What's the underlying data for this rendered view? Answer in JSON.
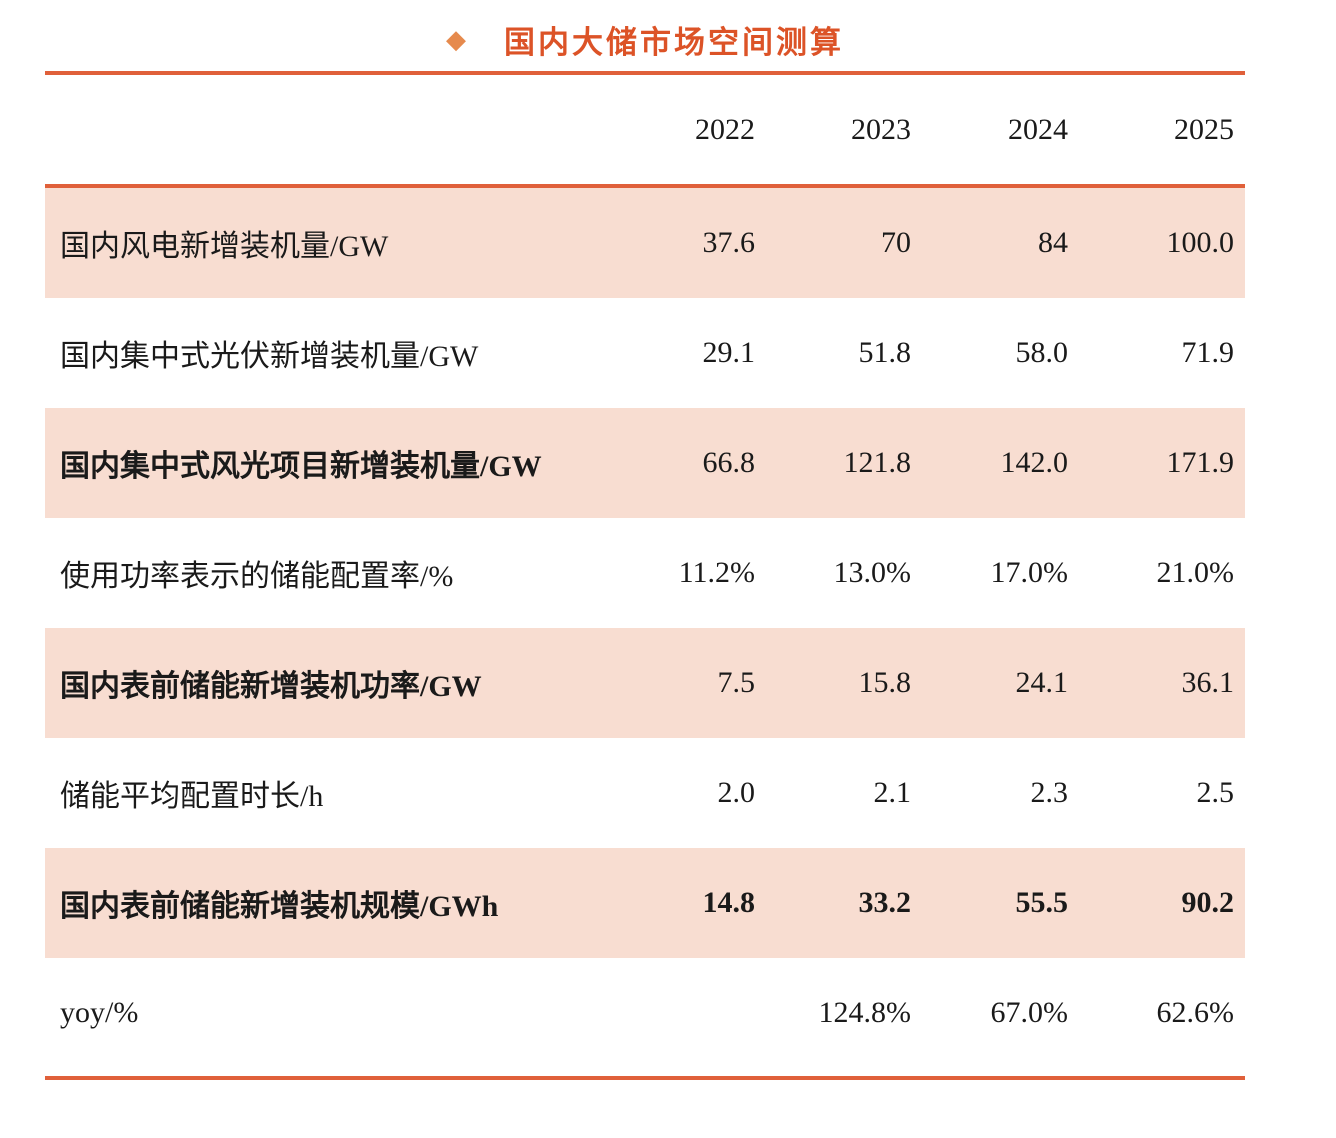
{
  "title": {
    "bullet_glyph": "◆",
    "text": "国内大储市场空间测算"
  },
  "colors": {
    "title_text": "#dc5327",
    "bullet": "#e68a4d",
    "accent_line": "#e0603a",
    "row_shade": "#f8ddd1"
  },
  "chart_data": {
    "type": "table",
    "title": "国内大储市场空间测算",
    "columns": [
      "",
      "2022",
      "2023",
      "2024",
      "2025"
    ],
    "rows": [
      {
        "label": "国内风电新增装机量/GW",
        "values": [
          "37.6",
          "70",
          "84",
          "100.0"
        ],
        "shaded": true,
        "bold": false,
        "values_bold": false
      },
      {
        "label": "国内集中式光伏新增装机量/GW",
        "values": [
          "29.1",
          "51.8",
          "58.0",
          "71.9"
        ],
        "shaded": false,
        "bold": false,
        "values_bold": false
      },
      {
        "label": "国内集中式风光项目新增装机量/GW",
        "values": [
          "66.8",
          "121.8",
          "142.0",
          "171.9"
        ],
        "shaded": true,
        "bold": true,
        "values_bold": false
      },
      {
        "label": "使用功率表示的储能配置率/%",
        "values": [
          "11.2%",
          "13.0%",
          "17.0%",
          "21.0%"
        ],
        "shaded": false,
        "bold": false,
        "values_bold": false
      },
      {
        "label": "国内表前储能新增装机功率/GW",
        "values": [
          "7.5",
          "15.8",
          "24.1",
          "36.1"
        ],
        "shaded": true,
        "bold": true,
        "values_bold": false
      },
      {
        "label": "储能平均配置时长/h",
        "values": [
          "2.0",
          "2.1",
          "2.3",
          "2.5"
        ],
        "shaded": false,
        "bold": false,
        "values_bold": false
      },
      {
        "label": "国内表前储能新增装机规模/GWh",
        "values": [
          "14.8",
          "33.2",
          "55.5",
          "90.2"
        ],
        "shaded": true,
        "bold": true,
        "values_bold": true
      },
      {
        "label": "yoy/%",
        "values": [
          "",
          "124.8%",
          "67.0%",
          "62.6%"
        ],
        "shaded": false,
        "bold": false,
        "values_bold": false
      }
    ]
  }
}
